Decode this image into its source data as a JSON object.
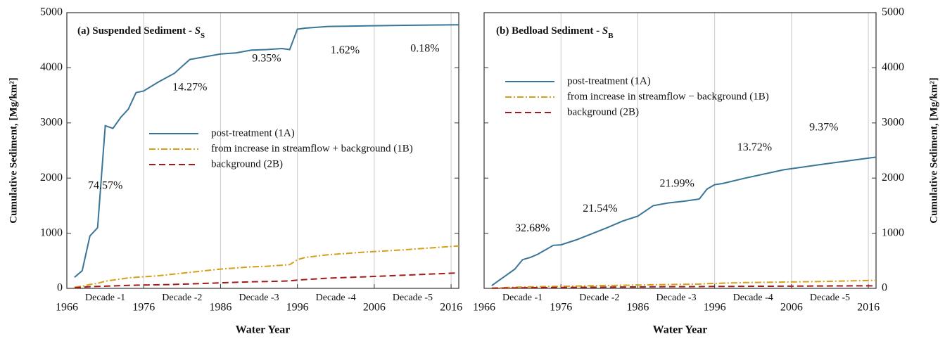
{
  "chart_data": [
    {
      "type": "line",
      "title": "(a) Suspended Sediment - ",
      "title_symbol": "S",
      "title_subscript": "S",
      "xlabel": "Water Year",
      "ylabel": "Cumulative Sediment, [Mg/km²]",
      "y_axis_side": "left",
      "xlim": [
        1966,
        2017
      ],
      "ylim": [
        0,
        5000
      ],
      "xticks": [
        1966,
        1976,
        1986,
        1996,
        2006,
        2016
      ],
      "yticks": [
        0,
        1000,
        2000,
        3000,
        4000,
        5000
      ],
      "grid": "x",
      "legend": "center right",
      "decades": [
        "Decade -1",
        "Decade -2",
        "Decade -3",
        "Decade -4",
        "Decade -5"
      ],
      "annotations": [
        "74.57%",
        "14.27%",
        "9.35%",
        "1.62%",
        "0.18%"
      ],
      "x": [
        1967,
        1968,
        1969,
        1970,
        1971,
        1972,
        1973,
        1974,
        1975,
        1976,
        1978,
        1980,
        1982,
        1984,
        1986,
        1988,
        1990,
        1992,
        1994,
        1995,
        1996,
        1997,
        2000,
        2005,
        2010,
        2017
      ],
      "series": [
        {
          "name": "post-treatment (1A)",
          "color": "#3a7598",
          "dash": "solid",
          "values": [
            200,
            320,
            950,
            1100,
            2950,
            2900,
            3100,
            3250,
            3550,
            3580,
            3750,
            3900,
            4150,
            4200,
            4250,
            4270,
            4320,
            4330,
            4350,
            4330,
            4700,
            4720,
            4750,
            4760,
            4770,
            4780
          ]
        },
        {
          "name": "from increase in streamflow + background (1B)",
          "color": "#d4a017",
          "dash": "dashdot",
          "values": [
            20,
            40,
            70,
            90,
            130,
            150,
            170,
            190,
            200,
            210,
            230,
            260,
            290,
            320,
            350,
            370,
            390,
            400,
            420,
            430,
            520,
            560,
            610,
            660,
            700,
            770
          ]
        },
        {
          "name": "background (2B)",
          "color": "#a31a1a",
          "dash": "dashed",
          "values": [
            10,
            20,
            30,
            35,
            40,
            45,
            50,
            55,
            58,
            60,
            65,
            72,
            80,
            90,
            100,
            110,
            118,
            125,
            130,
            135,
            150,
            160,
            185,
            210,
            240,
            280
          ]
        }
      ]
    },
    {
      "type": "line",
      "title": "(b) Bedload Sediment - ",
      "title_symbol": "S",
      "title_subscript": "B",
      "xlabel": "Water Year",
      "ylabel": "Cumulative Sediment, [Mg/km²]",
      "y_axis_side": "right",
      "xlim": [
        1966,
        2017
      ],
      "ylim": [
        0,
        5000
      ],
      "xticks": [
        1966,
        1976,
        1986,
        1996,
        2006,
        2016
      ],
      "yticks": [
        0,
        1000,
        2000,
        3000,
        4000,
        5000
      ],
      "grid": "x",
      "legend": "upper left",
      "decades": [
        "Decade -1",
        "Decade -2",
        "Decade -3",
        "Decade -4",
        "Decade -5"
      ],
      "annotations": [
        "32.68%",
        "21.54%",
        "21.99%",
        "13.72%",
        "9.37%"
      ],
      "x": [
        1967,
        1968,
        1969,
        1970,
        1971,
        1972,
        1973,
        1974,
        1975,
        1976,
        1978,
        1980,
        1982,
        1984,
        1986,
        1988,
        1990,
        1992,
        1994,
        1995,
        1996,
        1997,
        2000,
        2005,
        2010,
        2017
      ],
      "series": [
        {
          "name": "post-treatment (1A)",
          "color": "#3a7598",
          "dash": "solid",
          "values": [
            50,
            150,
            250,
            350,
            520,
            560,
            620,
            700,
            780,
            790,
            880,
            990,
            1100,
            1220,
            1310,
            1500,
            1550,
            1580,
            1620,
            1800,
            1880,
            1900,
            2000,
            2150,
            2250,
            2380
          ]
        },
        {
          "name": "from increase in streamflow − background (1B)",
          "color": "#d4a017",
          "dash": "dashdot",
          "values": [
            5,
            10,
            15,
            20,
            25,
            28,
            30,
            33,
            36,
            38,
            42,
            48,
            52,
            56,
            60,
            65,
            70,
            74,
            78,
            85,
            90,
            95,
            105,
            115,
            125,
            145
          ]
        },
        {
          "name": "background (2B)",
          "color": "#a31a1a",
          "dash": "dashed",
          "values": [
            2,
            4,
            6,
            8,
            10,
            12,
            13,
            14,
            15,
            16,
            18,
            20,
            22,
            24,
            26,
            28,
            30,
            31,
            32,
            33,
            34,
            35,
            37,
            40,
            43,
            47
          ]
        }
      ]
    }
  ]
}
